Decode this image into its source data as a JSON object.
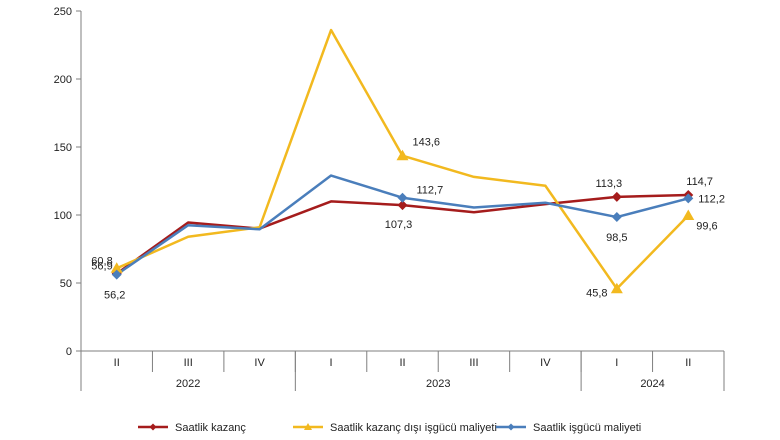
{
  "chart_data": {
    "type": "line",
    "title": "",
    "xlabel": "",
    "ylabel": "",
    "ylim": [
      0,
      250
    ],
    "yticks": [
      0,
      50,
      100,
      150,
      200,
      250
    ],
    "grid": false,
    "legend_position": "bottom",
    "categories": [
      "II",
      "III",
      "IV",
      "I",
      "II",
      "III",
      "IV",
      "I",
      "II"
    ],
    "year_groups": [
      {
        "label": "2022",
        "span": 3
      },
      {
        "label": "2023",
        "span": 4
      },
      {
        "label": "2024",
        "span": 2
      }
    ],
    "series": [
      {
        "name": "Saatlik kazanç",
        "color": "#a51c1c",
        "marker": "diamond",
        "values": [
          56.9,
          94.5,
          90.0,
          110.0,
          107.3,
          102.0,
          108.0,
          113.3,
          114.7
        ],
        "labels": [
          "56,9",
          "",
          "",
          "",
          "107,3",
          "",
          "",
          "113,3",
          "114,7"
        ]
      },
      {
        "name": "Saatlik kazanç dışı işgücü maliyeti",
        "color": "#f2b91f",
        "marker": "triangle",
        "values": [
          60.8,
          84.0,
          91.0,
          236.0,
          143.6,
          128.0,
          121.5,
          45.8,
          99.6
        ],
        "labels": [
          "60,8",
          "",
          "",
          "",
          "143,6",
          "",
          "",
          "45,8",
          "99,6"
        ]
      },
      {
        "name": "Saatlik işgücü maliyeti",
        "color": "#4a7ebb",
        "marker": "diamond",
        "values": [
          56.2,
          92.5,
          89.5,
          129.0,
          112.7,
          105.5,
          109.0,
          98.5,
          112.2
        ],
        "labels": [
          "56,2",
          "",
          "",
          "",
          "112,7",
          "",
          "",
          "98,5",
          "112,2"
        ]
      }
    ]
  }
}
